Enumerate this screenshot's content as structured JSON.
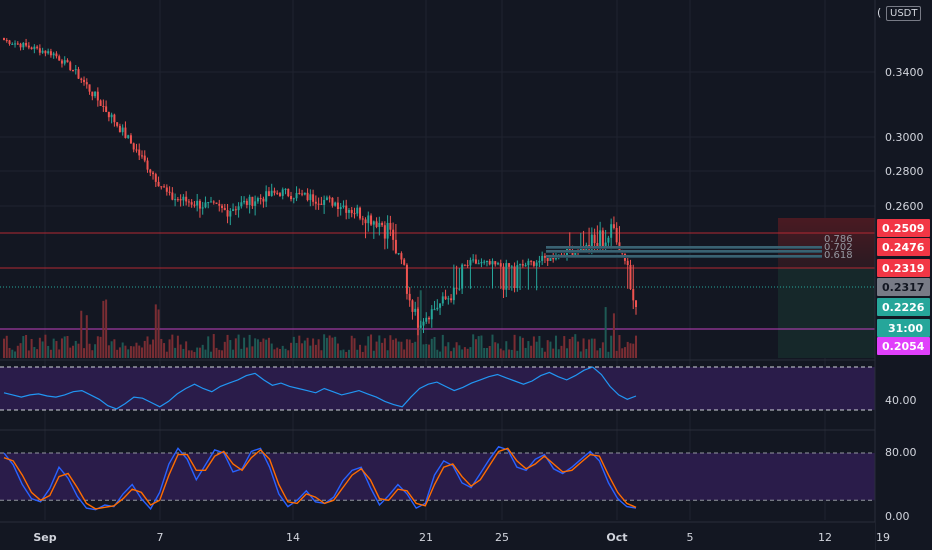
{
  "header": {
    "currency": "USDT",
    "currency_partial": "("
  },
  "colors": {
    "background": "#131722",
    "up": "#26a69a",
    "down": "#ef5350",
    "grid": "#1f2330",
    "rsi_line": "#2196f3",
    "stoch_k": "#2962ff",
    "stoch_d": "#ff6d00",
    "osc_band": "#2a1c4a",
    "level_red": "#b22833"
  },
  "chart_data": [
    {
      "type": "candlestick",
      "title": "",
      "symbol_currency": "USDT",
      "price_ticks": [
        "0.3400",
        "0.3000",
        "0.2800",
        "0.2600"
      ],
      "x_ticks": [
        "Sep",
        "7",
        "14",
        "21",
        "25",
        "Oct",
        "5",
        "12",
        "19"
      ],
      "price_tags": [
        {
          "label": "0.2509",
          "kind": "red-level"
        },
        {
          "label": "0.2476",
          "kind": "red-level"
        },
        {
          "label": "0.2319",
          "kind": "red-level"
        },
        {
          "label": "0.2317",
          "kind": "last-price"
        },
        {
          "label": "0.2226",
          "kind": "close"
        },
        {
          "label": "31:00",
          "kind": "countdown"
        },
        {
          "label": "0.2054",
          "kind": "magenta-level"
        }
      ],
      "fib_labels": [
        "0.786",
        "0.702",
        "0.618"
      ],
      "horizontal_levels": [
        0.2509,
        0.2319,
        0.2054
      ],
      "key_prices": [
        0.37,
        0.357,
        0.31,
        0.265,
        0.258,
        0.268,
        0.262,
        0.2509,
        0.216,
        0.236,
        0.2319,
        0.2441,
        0.2509,
        0.2226
      ]
    },
    {
      "type": "line",
      "indicator": "RSI",
      "y_ticks": [
        "40.00"
      ],
      "band": [
        30,
        70
      ],
      "values": [
        46,
        44,
        42,
        44,
        45,
        43,
        42,
        44,
        47,
        48,
        44,
        40,
        34,
        31,
        36,
        42,
        41,
        37,
        33,
        38,
        45,
        50,
        54,
        50,
        47,
        52,
        55,
        58,
        62,
        64,
        58,
        53,
        55,
        52,
        50,
        48,
        46,
        50,
        47,
        44,
        46,
        48,
        45,
        42,
        38,
        35,
        33,
        42,
        50,
        54,
        56,
        52,
        48,
        51,
        55,
        58,
        61,
        63,
        60,
        57,
        54,
        57,
        62,
        65,
        61,
        58,
        62,
        67,
        70,
        63,
        52,
        44,
        40,
        43
      ]
    },
    {
      "type": "line",
      "indicator": "Stochastic RSI",
      "y_ticks": [
        "80.00",
        "0.00"
      ],
      "band": [
        20,
        80
      ],
      "series": [
        {
          "values": [
            80,
            65,
            40,
            22,
            18,
            35,
            62,
            48,
            25,
            10,
            8,
            14,
            12,
            28,
            40,
            22,
            9,
            30,
            66,
            86,
            72,
            46,
            65,
            84,
            80,
            56,
            60,
            82,
            86,
            62,
            28,
            12,
            20,
            32,
            18,
            16,
            24,
            45,
            58,
            62,
            36,
            14,
            26,
            40,
            28,
            10,
            16,
            52,
            70,
            64,
            42,
            36,
            54,
            72,
            88,
            84,
            62,
            58,
            72,
            78,
            60,
            54,
            62,
            72,
            82,
            70,
            42,
            22,
            12,
            10
          ]
        },
        {
          "values": [
            74,
            70,
            52,
            30,
            20,
            26,
            50,
            54,
            36,
            16,
            9,
            11,
            13,
            22,
            34,
            30,
            14,
            20,
            52,
            78,
            78,
            58,
            58,
            76,
            82,
            66,
            58,
            74,
            84,
            72,
            40,
            18,
            16,
            28,
            24,
            16,
            20,
            36,
            52,
            60,
            46,
            22,
            20,
            34,
            32,
            16,
            13,
            40,
            62,
            66,
            50,
            38,
            46,
            64,
            82,
            86,
            70,
            60,
            66,
            76,
            66,
            56,
            58,
            68,
            78,
            76,
            52,
            30,
            16,
            11
          ]
        }
      ]
    }
  ]
}
